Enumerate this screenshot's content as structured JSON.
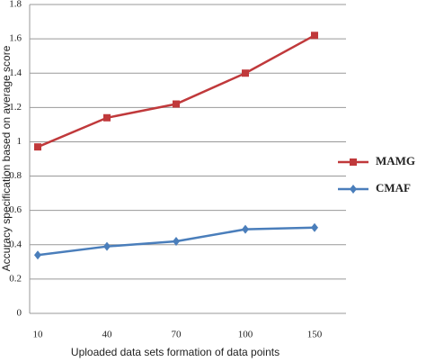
{
  "chart_data": {
    "type": "line",
    "y_label": "Accuracy specification based on average score",
    "x_label": "Uploaded data sets formation of data points",
    "categories": [
      "10",
      "40",
      "70",
      "100",
      "150"
    ],
    "series": [
      {
        "name": "MAMG",
        "color": "#c0393b",
        "marker": "square",
        "values": [
          0.97,
          1.14,
          1.22,
          1.4,
          1.62
        ]
      },
      {
        "name": "CMAF",
        "color": "#4a7ebb",
        "marker": "diamond",
        "values": [
          0.34,
          0.39,
          0.42,
          0.49,
          0.5
        ]
      }
    ],
    "ylim": [
      0,
      1.8
    ],
    "yticks": [
      0,
      0.2,
      0.4,
      0.6,
      0.8,
      1,
      1.2,
      1.4,
      1.6,
      1.8
    ],
    "grid": true,
    "legend": "right"
  }
}
